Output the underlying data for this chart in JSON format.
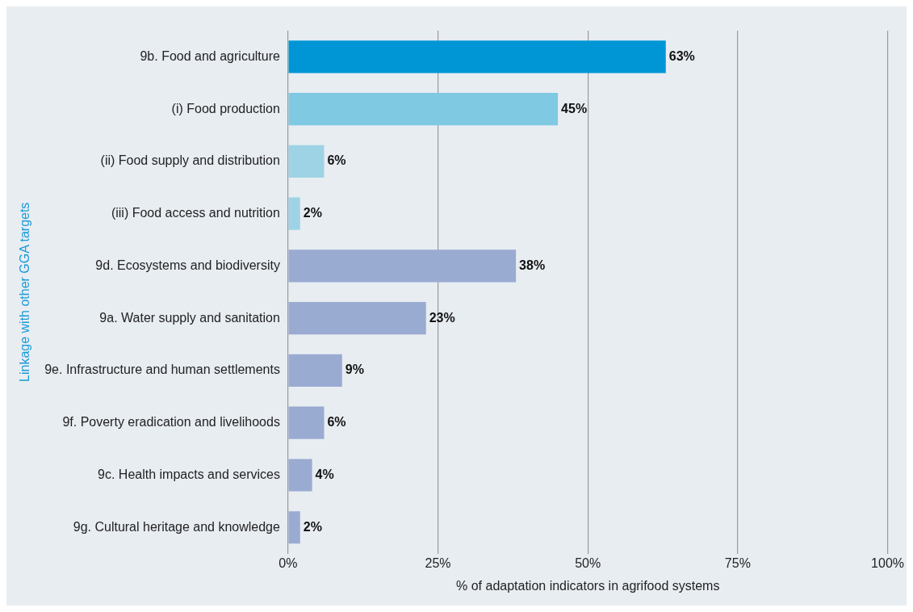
{
  "chart_data": {
    "type": "bar",
    "orientation": "horizontal",
    "xlabel": "% of adaptation indicators in agrifood systems",
    "ylabel": "Linkage with other GGA targets",
    "categories": [
      "9b. Food and agriculture",
      "(i) Food production",
      "(ii) Food supply and distribution",
      "(iii) Food access and nutrition",
      "9d. Ecosystems and biodiversity",
      "9a. Water supply and sanitation",
      "9e. Infrastructure and human settlements",
      "9f. Poverty eradication and livelihoods",
      "9c. Health impacts and services",
      "9g. Cultural heritage and knowledge"
    ],
    "values": [
      63,
      45,
      6,
      2,
      38,
      23,
      9,
      6,
      4,
      2
    ],
    "value_labels": [
      "63%",
      "45%",
      "6%",
      "2%",
      "38%",
      "23%",
      "9%",
      "6%",
      "4%",
      "2%"
    ],
    "colors": [
      "#0096d6",
      "#7fc9e2",
      "#9ed3e5",
      "#9ed3e5",
      "#9aabd2",
      "#9aabd2",
      "#9aabd2",
      "#9aabd2",
      "#9aabd2",
      "#9aabd2"
    ],
    "xlim": [
      0,
      100
    ],
    "xticks": [
      {
        "value": 0,
        "label": "0%"
      },
      {
        "value": 25,
        "label": "25%"
      },
      {
        "value": 50,
        "label": "50%"
      },
      {
        "value": 75,
        "label": "75%"
      },
      {
        "value": 100,
        "label": "100%"
      }
    ],
    "grid": "x",
    "legend": false
  }
}
